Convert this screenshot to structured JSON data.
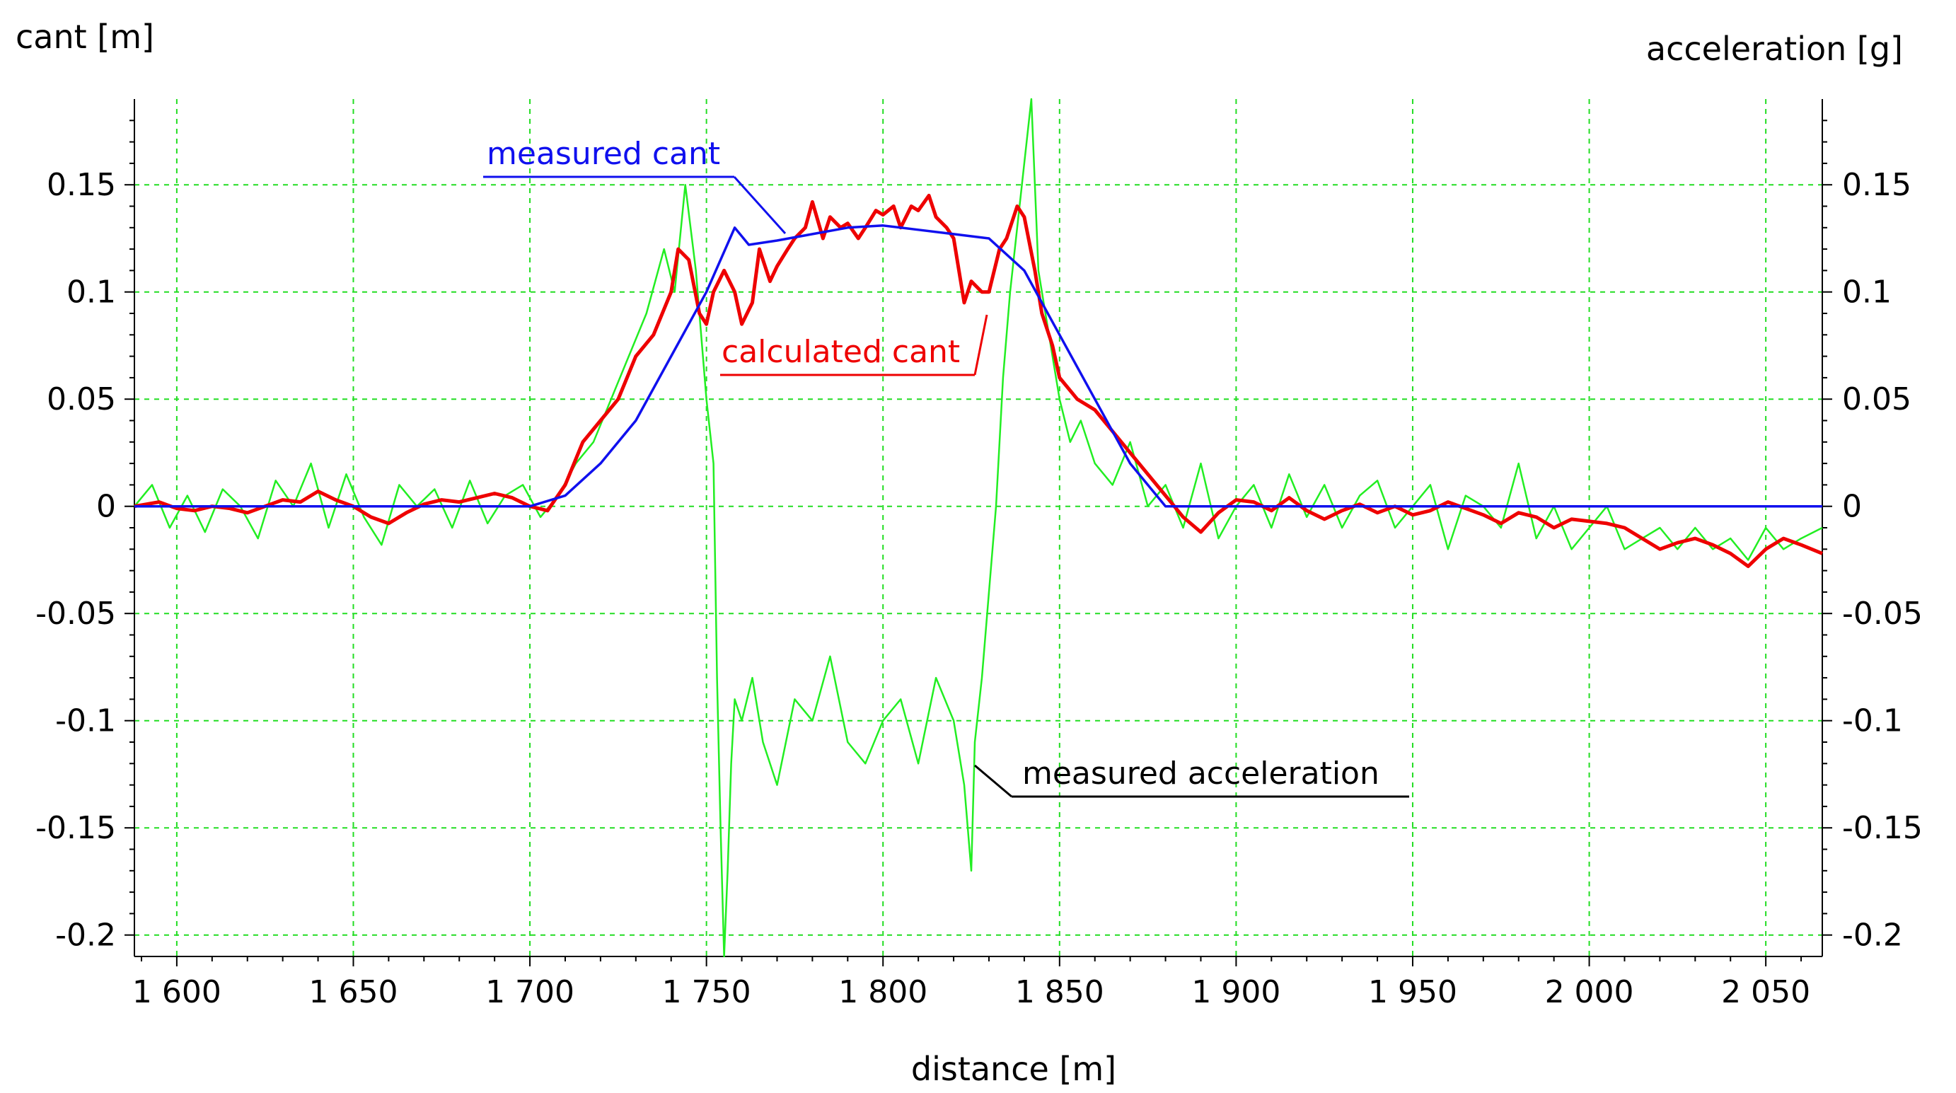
{
  "chart_data": {
    "type": "line",
    "title": "",
    "xlabel": "distance [m]",
    "ylabel_left": "cant [m]",
    "ylabel_right": "acceleration [g]",
    "xlim": [
      1588,
      2066
    ],
    "ylim_left": [
      -0.21,
      0.19
    ],
    "ylim_right": [
      -0.21,
      0.19
    ],
    "x_ticks": [
      {
        "value": 1600,
        "label": "1 600"
      },
      {
        "value": 1650,
        "label": "1 650"
      },
      {
        "value": 1700,
        "label": "1 700"
      },
      {
        "value": 1750,
        "label": "1 750"
      },
      {
        "value": 1800,
        "label": "1 800"
      },
      {
        "value": 1850,
        "label": "1 850"
      },
      {
        "value": 1900,
        "label": "1 900"
      },
      {
        "value": 1950,
        "label": "1 950"
      },
      {
        "value": 2000,
        "label": "2 000"
      },
      {
        "value": 2050,
        "label": "2 050"
      }
    ],
    "y_ticks": [
      {
        "value": 0.15,
        "label": "0.15"
      },
      {
        "value": 0.1,
        "label": "0.1"
      },
      {
        "value": 0.05,
        "label": "0.05"
      },
      {
        "value": 0,
        "label": "0"
      },
      {
        "value": -0.05,
        "label": "-0.05"
      },
      {
        "value": -0.1,
        "label": "-0.1"
      },
      {
        "value": -0.15,
        "label": "-0.15"
      },
      {
        "value": -0.2,
        "label": "-0.2"
      }
    ],
    "grid": true,
    "series": [
      {
        "name": "measured acceleration",
        "color": "#22ee22",
        "x": [
          1588,
          1593,
          1598,
          1603,
          1608,
          1613,
          1618,
          1623,
          1628,
          1633,
          1638,
          1643,
          1648,
          1653,
          1658,
          1663,
          1668,
          1673,
          1678,
          1683,
          1688,
          1693,
          1698,
          1703,
          1708,
          1713,
          1718,
          1723,
          1728,
          1733,
          1738,
          1741,
          1744,
          1747,
          1750,
          1752,
          1753,
          1754,
          1755,
          1756,
          1757,
          1758,
          1760,
          1763,
          1766,
          1770,
          1775,
          1780,
          1785,
          1790,
          1795,
          1800,
          1805,
          1810,
          1815,
          1820,
          1823,
          1825,
          1826,
          1828,
          1830,
          1832,
          1834,
          1836,
          1838,
          1840,
          1842,
          1843,
          1844,
          1846,
          1848,
          1850,
          1853,
          1856,
          1860,
          1865,
          1870,
          1875,
          1880,
          1885,
          1890,
          1895,
          1900,
          1905,
          1910,
          1915,
          1920,
          1925,
          1930,
          1935,
          1940,
          1945,
          1950,
          1955,
          1960,
          1965,
          1970,
          1975,
          1980,
          1985,
          1990,
          1995,
          2000,
          2005,
          2010,
          2015,
          2020,
          2025,
          2030,
          2035,
          2040,
          2045,
          2050,
          2055,
          2060,
          2066
        ],
        "values": [
          0.0,
          0.01,
          -0.01,
          0.005,
          -0.012,
          0.008,
          0.0,
          -0.015,
          0.012,
          0.0,
          0.02,
          -0.01,
          0.015,
          -0.005,
          -0.018,
          0.01,
          0.0,
          0.008,
          -0.01,
          0.012,
          -0.008,
          0.005,
          0.01,
          -0.005,
          0.005,
          0.02,
          0.03,
          0.05,
          0.07,
          0.09,
          0.12,
          0.1,
          0.15,
          0.11,
          0.05,
          0.02,
          -0.08,
          -0.15,
          -0.21,
          -0.17,
          -0.12,
          -0.09,
          -0.1,
          -0.08,
          -0.11,
          -0.13,
          -0.09,
          -0.1,
          -0.07,
          -0.11,
          -0.12,
          -0.1,
          -0.09,
          -0.12,
          -0.08,
          -0.1,
          -0.13,
          -0.17,
          -0.11,
          -0.08,
          -0.04,
          0.0,
          0.06,
          0.1,
          0.13,
          0.16,
          0.19,
          0.15,
          0.11,
          0.09,
          0.07,
          0.05,
          0.03,
          0.04,
          0.02,
          0.01,
          0.03,
          0.0,
          0.01,
          -0.01,
          0.02,
          -0.015,
          0.0,
          0.01,
          -0.01,
          0.015,
          -0.005,
          0.01,
          -0.01,
          0.005,
          0.012,
          -0.01,
          0.0,
          0.01,
          -0.02,
          0.005,
          0.0,
          -0.01,
          0.02,
          -0.015,
          0.0,
          -0.02,
          -0.01,
          0.0,
          -0.02,
          -0.015,
          -0.01,
          -0.02,
          -0.01,
          -0.02,
          -0.015,
          -0.025,
          -0.01,
          -0.02,
          -0.015,
          -0.01
        ]
      },
      {
        "name": "calculated cant",
        "color": "#ee0000",
        "x": [
          1588,
          1595,
          1600,
          1605,
          1610,
          1615,
          1620,
          1625,
          1630,
          1635,
          1640,
          1645,
          1650,
          1655,
          1660,
          1665,
          1670,
          1675,
          1680,
          1685,
          1690,
          1695,
          1700,
          1705,
          1710,
          1715,
          1720,
          1725,
          1730,
          1735,
          1740,
          1742,
          1745,
          1748,
          1750,
          1752,
          1755,
          1758,
          1760,
          1763,
          1765,
          1768,
          1770,
          1773,
          1775,
          1778,
          1780,
          1783,
          1785,
          1788,
          1790,
          1793,
          1795,
          1798,
          1800,
          1803,
          1805,
          1808,
          1810,
          1813,
          1815,
          1818,
          1820,
          1823,
          1825,
          1828,
          1830,
          1833,
          1835,
          1838,
          1840,
          1843,
          1845,
          1848,
          1850,
          1855,
          1860,
          1865,
          1870,
          1875,
          1880,
          1885,
          1890,
          1895,
          1900,
          1905,
          1910,
          1915,
          1920,
          1925,
          1930,
          1935,
          1940,
          1945,
          1950,
          1955,
          1960,
          1965,
          1970,
          1975,
          1980,
          1985,
          1990,
          1995,
          2000,
          2005,
          2010,
          2015,
          2020,
          2025,
          2030,
          2035,
          2040,
          2045,
          2050,
          2055,
          2060,
          2066
        ],
        "values": [
          0.0,
          0.002,
          -0.001,
          -0.002,
          0.0,
          -0.001,
          -0.003,
          0.0,
          0.003,
          0.002,
          0.007,
          0.003,
          0.0,
          -0.005,
          -0.008,
          -0.003,
          0.001,
          0.003,
          0.002,
          0.004,
          0.006,
          0.004,
          0.0,
          -0.002,
          0.01,
          0.03,
          0.04,
          0.05,
          0.07,
          0.08,
          0.1,
          0.12,
          0.115,
          0.09,
          0.085,
          0.1,
          0.11,
          0.1,
          0.085,
          0.095,
          0.12,
          0.105,
          0.112,
          0.12,
          0.125,
          0.13,
          0.142,
          0.125,
          0.135,
          0.13,
          0.132,
          0.125,
          0.13,
          0.138,
          0.136,
          0.14,
          0.13,
          0.14,
          0.138,
          0.145,
          0.135,
          0.13,
          0.125,
          0.095,
          0.105,
          0.1,
          0.1,
          0.12,
          0.125,
          0.14,
          0.135,
          0.11,
          0.09,
          0.075,
          0.06,
          0.05,
          0.045,
          0.035,
          0.025,
          0.015,
          0.005,
          -0.005,
          -0.012,
          -0.003,
          0.003,
          0.002,
          -0.002,
          0.004,
          -0.002,
          -0.006,
          -0.002,
          0.001,
          -0.003,
          0.0,
          -0.004,
          -0.002,
          0.002,
          -0.001,
          -0.004,
          -0.008,
          -0.003,
          -0.005,
          -0.01,
          -0.006,
          -0.007,
          -0.008,
          -0.01,
          -0.015,
          -0.02,
          -0.017,
          -0.015,
          -0.018,
          -0.022,
          -0.028,
          -0.02,
          -0.015,
          -0.018,
          -0.022
        ]
      },
      {
        "name": "measured cant",
        "color": "#1010ee",
        "x": [
          1588,
          1600,
          1650,
          1700,
          1710,
          1720,
          1730,
          1740,
          1750,
          1758,
          1762,
          1770,
          1780,
          1790,
          1800,
          1810,
          1820,
          1830,
          1840,
          1850,
          1860,
          1870,
          1880,
          1900,
          2000,
          2066
        ],
        "values": [
          0.0,
          0.0,
          0.0,
          0.0,
          0.005,
          0.02,
          0.04,
          0.07,
          0.1,
          0.13,
          0.122,
          0.124,
          0.127,
          0.13,
          0.131,
          0.129,
          0.127,
          0.125,
          0.11,
          0.08,
          0.05,
          0.02,
          0.0,
          0.0,
          0.0,
          0.0
        ]
      }
    ],
    "annotations": [
      {
        "text": "measured cant",
        "color": "#1010ee"
      },
      {
        "text": "calculated cant",
        "color": "#ee0000"
      },
      {
        "text": "measured acceleration",
        "color": "#000000"
      }
    ]
  }
}
